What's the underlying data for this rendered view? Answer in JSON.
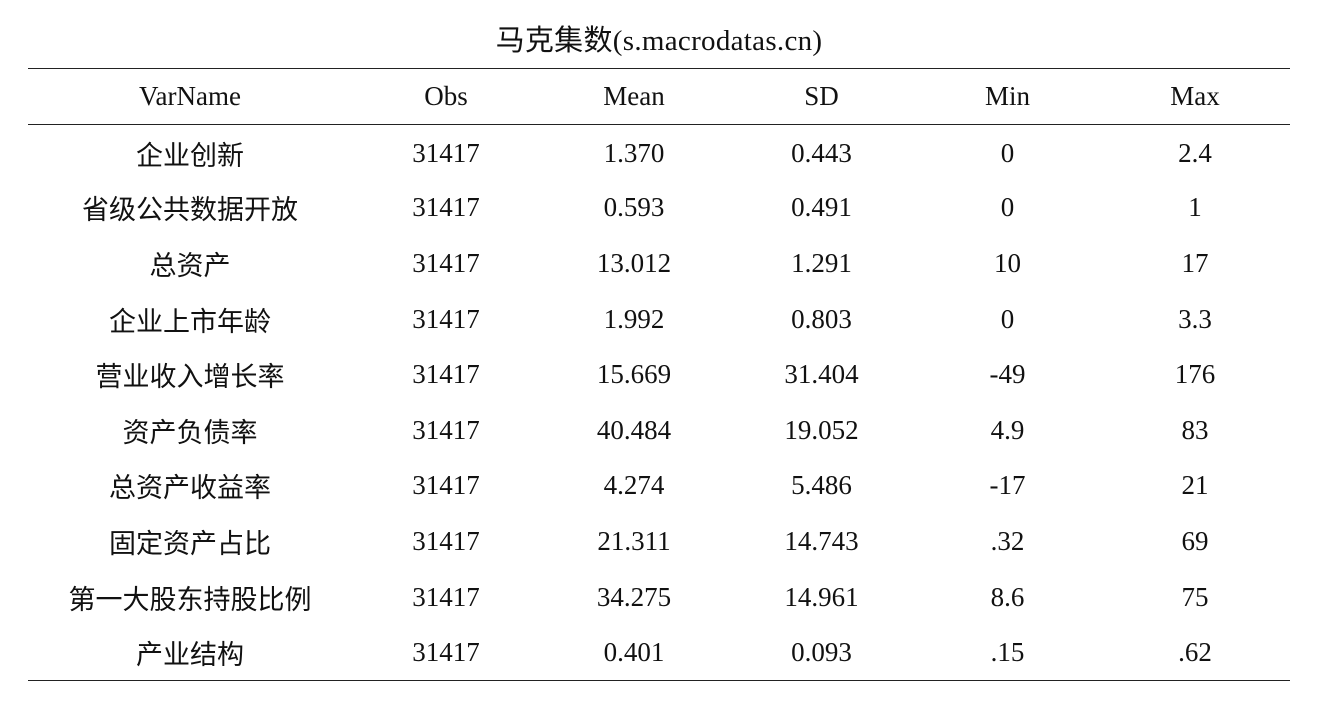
{
  "title": "马克集数(s.macrodatas.cn)",
  "table": {
    "headers": [
      "VarName",
      "Obs",
      "Mean",
      "SD",
      "Min",
      "Max"
    ],
    "rows": [
      [
        "企业创新",
        "31417",
        "1.370",
        "0.443",
        "0",
        "2.4"
      ],
      [
        "省级公共数据开放",
        "31417",
        "0.593",
        "0.491",
        "0",
        "1"
      ],
      [
        "总资产",
        "31417",
        "13.012",
        "1.291",
        "10",
        "17"
      ],
      [
        "企业上市年龄",
        "31417",
        "1.992",
        "0.803",
        "0",
        "3.3"
      ],
      [
        "营业收入增长率",
        "31417",
        "15.669",
        "31.404",
        "-49",
        "176"
      ],
      [
        "资产负债率",
        "31417",
        "40.484",
        "19.052",
        "4.9",
        "83"
      ],
      [
        "总资产收益率",
        "31417",
        "4.274",
        "5.486",
        "-17",
        "21"
      ],
      [
        "固定资产占比",
        "31417",
        "21.311",
        "14.743",
        ".32",
        "69"
      ],
      [
        "第一大股东持股比例",
        "31417",
        "34.275",
        "14.961",
        "8.6",
        "75"
      ],
      [
        "产业结构",
        "31417",
        "0.401",
        "0.093",
        ".15",
        ".62"
      ]
    ]
  }
}
